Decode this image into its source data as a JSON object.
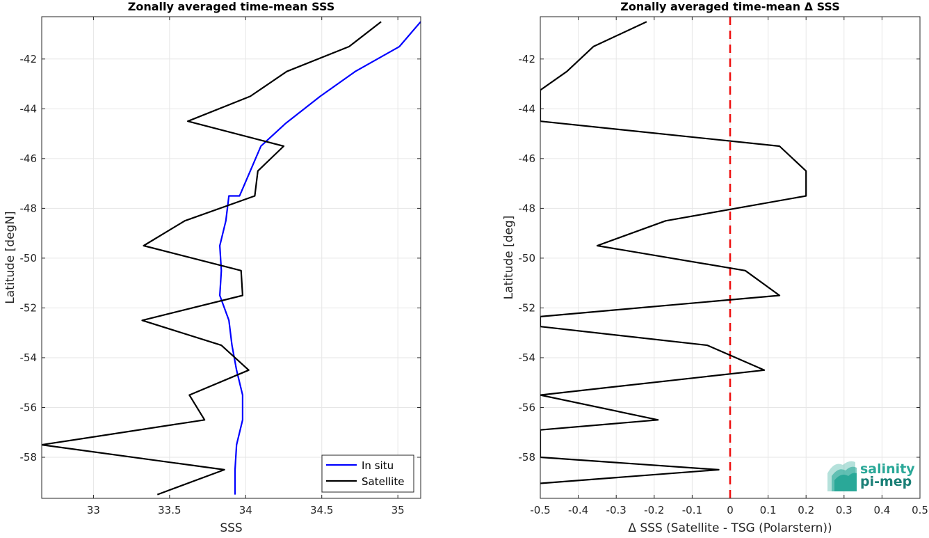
{
  "chart_data": [
    {
      "type": "line",
      "title": "Zonally averaged time-mean SSS",
      "xlabel": "SSS",
      "ylabel": "Latitude [degN]",
      "xlim": [
        32.66,
        35.15
      ],
      "ylim": [
        -59.65,
        -40.3
      ],
      "xticks": [
        33,
        33.5,
        34,
        34.5,
        35
      ],
      "xtick_labels": [
        "33",
        "33.5",
        "34",
        "34.5",
        "35"
      ],
      "yticks": [
        -58,
        -56,
        -54,
        -52,
        -50,
        -48,
        -46,
        -44,
        -42
      ],
      "ytick_labels": [
        "-58",
        "-56",
        "-54",
        "-52",
        "-50",
        "-48",
        "-46",
        "-44",
        "-42"
      ],
      "grid": true,
      "legend": "bottom-right",
      "series": [
        {
          "name": "In situ",
          "color": "#0000ff",
          "points": [
            [
              35.15,
              -40.5
            ],
            [
              35.01,
              -41.5
            ],
            [
              34.72,
              -42.5
            ],
            [
              34.49,
              -43.5
            ],
            [
              34.26,
              -44.6
            ],
            [
              34.1,
              -45.5
            ],
            [
              34.03,
              -46.5
            ],
            [
              33.96,
              -47.5
            ],
            [
              33.89,
              -47.5
            ],
            [
              33.87,
              -48.5
            ],
            [
              33.83,
              -49.5
            ],
            [
              33.84,
              -50.5
            ],
            [
              33.83,
              -51.5
            ],
            [
              33.89,
              -52.5
            ],
            [
              33.91,
              -53.5
            ],
            [
              33.94,
              -54.5
            ],
            [
              33.98,
              -55.5
            ],
            [
              33.98,
              -56.5
            ],
            [
              33.94,
              -57.5
            ],
            [
              33.93,
              -58.5
            ],
            [
              33.93,
              -59.5
            ]
          ]
        },
        {
          "name": "Satellite",
          "color": "#000000",
          "points": [
            [
              34.89,
              -40.5
            ],
            [
              34.68,
              -41.5
            ],
            [
              34.27,
              -42.5
            ],
            [
              34.03,
              -43.5
            ],
            [
              33.62,
              -44.5
            ],
            [
              34.25,
              -45.5
            ],
            [
              34.08,
              -46.5
            ],
            [
              34.06,
              -47.5
            ],
            [
              33.6,
              -48.5
            ],
            [
              33.33,
              -49.5
            ],
            [
              33.97,
              -50.5
            ],
            [
              33.98,
              -51.5
            ],
            [
              33.32,
              -52.5
            ],
            [
              33.84,
              -53.5
            ],
            [
              34.02,
              -54.5
            ],
            [
              33.63,
              -55.5
            ],
            [
              33.73,
              -56.5
            ],
            [
              32.66,
              -57.5
            ],
            [
              33.86,
              -58.5
            ],
            [
              33.42,
              -59.5
            ]
          ]
        }
      ]
    },
    {
      "type": "line",
      "title": "Zonally averaged time-mean Δ SSS",
      "xlabel": "Δ SSS (Satellite - TSG (Polarstern))",
      "ylabel": "Latitude [deg]",
      "xlim": [
        -0.5,
        0.5
      ],
      "ylim": [
        -59.65,
        -40.3
      ],
      "xticks": [
        -0.5,
        -0.4,
        -0.3,
        -0.2,
        -0.1,
        0,
        0.1,
        0.2,
        0.3,
        0.4,
        0.5
      ],
      "xtick_labels": [
        "-0.5",
        "-0.4",
        "-0.3",
        "-0.2",
        "-0.1",
        "0",
        "0.1",
        "0.2",
        "0.3",
        "0.4",
        "0.5"
      ],
      "yticks": [
        -58,
        -56,
        -54,
        -52,
        -50,
        -48,
        -46,
        -44,
        -42
      ],
      "ytick_labels": [
        "-58",
        "-56",
        "-54",
        "-52",
        "-50",
        "-48",
        "-46",
        "-44",
        "-42"
      ],
      "grid": true,
      "reference_line": {
        "x": 0,
        "color": "#ee1111",
        "style": "dashed"
      },
      "series": [
        {
          "color": "#000000",
          "points": [
            [
              -0.22,
              -40.5
            ],
            [
              -0.36,
              -41.5
            ],
            [
              -0.43,
              -42.5
            ],
            [
              -0.5,
              -43.25
            ],
            [
              -0.5,
              -44.5
            ],
            [
              0.13,
              -45.5
            ],
            [
              0.2,
              -46.5
            ],
            [
              0.2,
              -47.5
            ],
            [
              -0.17,
              -48.5
            ],
            [
              -0.35,
              -49.5
            ],
            [
              0.04,
              -50.5
            ],
            [
              0.13,
              -51.5
            ],
            [
              -0.5,
              -52.35
            ],
            [
              -0.5,
              -52.75
            ],
            [
              -0.06,
              -53.5
            ],
            [
              0.09,
              -54.5
            ],
            [
              -0.5,
              -55.5
            ],
            [
              -0.19,
              -56.5
            ],
            [
              -0.5,
              -56.9
            ],
            [
              -0.5,
              -58.0
            ],
            [
              -0.03,
              -58.5
            ],
            [
              -0.5,
              -59.05
            ]
          ]
        }
      ]
    }
  ],
  "legend": {
    "in_situ_label": "In situ",
    "satellite_label": "Satellite"
  },
  "logo": {
    "line1": "salinity",
    "line2": "pi-mep",
    "color": "#2aa898"
  }
}
